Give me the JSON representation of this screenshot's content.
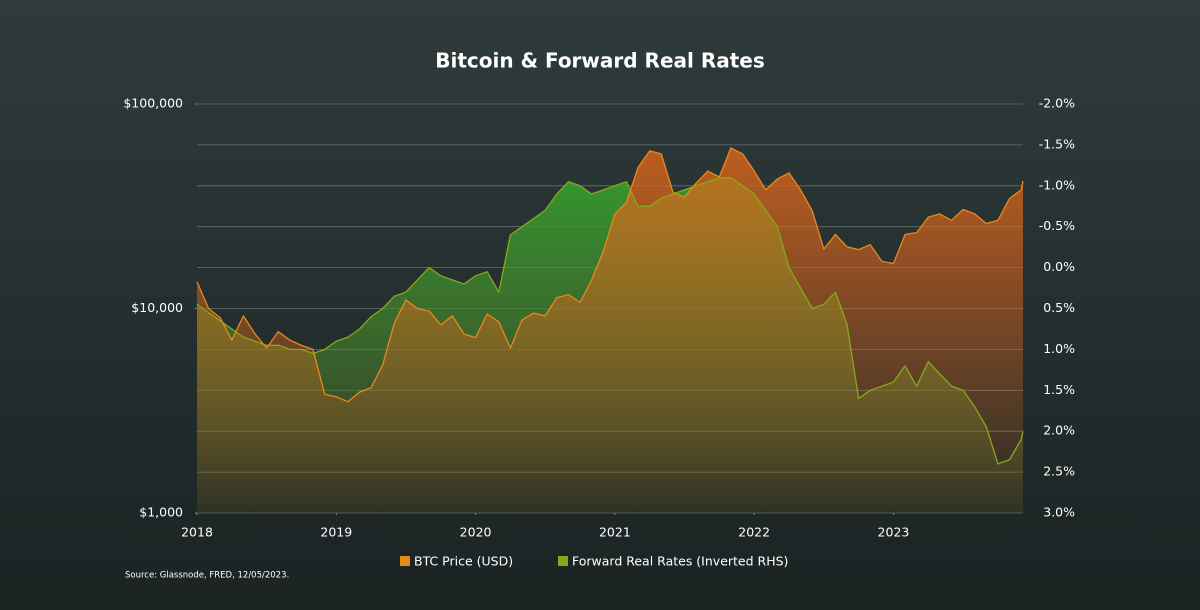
{
  "chart_data": {
    "type": "line",
    "title": "Bitcoin & Forward Real Rates",
    "source": "Source: Glassnode, FRED, 12/05/2023.",
    "x": [
      2018.0,
      2018.083,
      2018.167,
      2018.25,
      2018.333,
      2018.417,
      2018.5,
      2018.583,
      2018.667,
      2018.75,
      2018.833,
      2018.917,
      2019.0,
      2019.083,
      2019.167,
      2019.25,
      2019.333,
      2019.417,
      2019.5,
      2019.583,
      2019.667,
      2019.75,
      2019.833,
      2019.917,
      2020.0,
      2020.083,
      2020.167,
      2020.25,
      2020.333,
      2020.417,
      2020.5,
      2020.583,
      2020.667,
      2020.75,
      2020.833,
      2020.917,
      2021.0,
      2021.083,
      2021.167,
      2021.25,
      2021.333,
      2021.417,
      2021.5,
      2021.583,
      2021.667,
      2021.75,
      2021.833,
      2021.917,
      2022.0,
      2022.083,
      2022.167,
      2022.25,
      2022.333,
      2022.417,
      2022.5,
      2022.583,
      2022.667,
      2022.75,
      2022.833,
      2022.917,
      2023.0,
      2023.083,
      2023.167,
      2023.25,
      2023.333,
      2023.417,
      2023.5,
      2023.583,
      2023.667,
      2023.75,
      2023.833,
      2023.917,
      2023.93
    ],
    "xlim": [
      2018.0,
      2023.93
    ],
    "xticks": [
      2018,
      2019,
      2020,
      2021,
      2022,
      2023
    ],
    "ylim": [
      1000,
      100000
    ],
    "log_scale": true,
    "yticks": [
      {
        "value": 1000,
        "label": "$1,000"
      },
      {
        "value": 10000,
        "label": "$10,000"
      },
      {
        "value": 100000,
        "label": "$100,000"
      }
    ],
    "y2lim": [
      -2.0,
      3.0
    ],
    "y2_inverted": true,
    "y2ticks": [
      {
        "value": -2.0,
        "label": "-2.0%"
      },
      {
        "value": -1.5,
        "label": "-1.5%"
      },
      {
        "value": -1.0,
        "label": "-1.0%"
      },
      {
        "value": -0.5,
        "label": "-0.5%"
      },
      {
        "value": 0.0,
        "label": "0.0%"
      },
      {
        "value": 0.5,
        "label": "0.5%"
      },
      {
        "value": 1.0,
        "label": "1.0%"
      },
      {
        "value": 1.5,
        "label": "1.5%"
      },
      {
        "value": 2.0,
        "label": "2.0%"
      },
      {
        "value": 2.5,
        "label": "2.5%"
      },
      {
        "value": 3.0,
        "label": "3.0%"
      }
    ],
    "grid": true,
    "legend": "bottom",
    "series": [
      {
        "name": "BTC Price (USD)",
        "color": "#e8891c",
        "fill": "#d9611a",
        "values": [
          13500,
          10000,
          9000,
          7000,
          9200,
          7500,
          6400,
          7700,
          7000,
          6600,
          6300,
          3800,
          3700,
          3500,
          3900,
          4100,
          5300,
          8500,
          11000,
          10000,
          9700,
          8300,
          9200,
          7500,
          7200,
          9400,
          8600,
          6400,
          8800,
          9500,
          9200,
          11300,
          11700,
          10700,
          13800,
          19000,
          29000,
          33000,
          49000,
          59000,
          57000,
          37000,
          35000,
          41000,
          47000,
          44000,
          61000,
          57000,
          47000,
          38000,
          43000,
          46000,
          38000,
          30000,
          19500,
          23000,
          20000,
          19400,
          20500,
          17000,
          16600,
          23000,
          23500,
          28000,
          29000,
          27000,
          30500,
          29000,
          26000,
          27000,
          34500,
          38000,
          42000
        ]
      },
      {
        "name": "Forward Real Rates (Inverted RHS)",
        "color": "#86a81c",
        "fill": "#2f8f2a",
        "axis": "y2",
        "values": [
          0.45,
          0.55,
          0.65,
          0.75,
          0.85,
          0.9,
          0.95,
          0.95,
          1.0,
          1.0,
          1.05,
          1.0,
          0.9,
          0.85,
          0.75,
          0.6,
          0.5,
          0.35,
          0.3,
          0.15,
          0.0,
          0.1,
          0.15,
          0.2,
          0.1,
          0.05,
          0.3,
          -0.4,
          -0.5,
          -0.6,
          -0.7,
          -0.9,
          -1.05,
          -1.0,
          -0.9,
          -0.95,
          -1.0,
          -1.05,
          -0.75,
          -0.75,
          -0.85,
          -0.9,
          -0.95,
          -1.0,
          -1.05,
          -1.1,
          -1.1,
          -1.0,
          -0.9,
          -0.7,
          -0.5,
          0.0,
          0.25,
          0.5,
          0.45,
          0.3,
          0.7,
          1.6,
          1.5,
          1.45,
          1.4,
          1.2,
          1.45,
          1.15,
          1.3,
          1.45,
          1.5,
          1.7,
          1.95,
          2.4,
          2.35,
          2.1,
          2.0
        ]
      }
    ]
  }
}
